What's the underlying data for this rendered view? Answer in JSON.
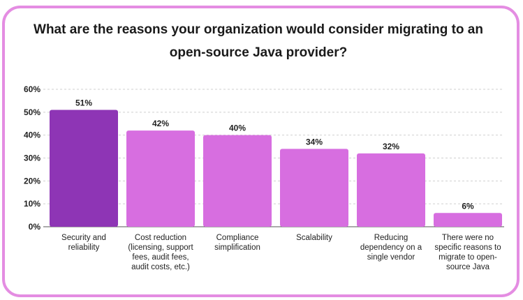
{
  "title": "What are the reasons your organization would consider migrating to an open-source Java provider?",
  "colors": {
    "border": "#e48de2",
    "highlight_bar": "#8e35b5",
    "bar": "#d76ee0",
    "grid": "#cfcfcf"
  },
  "chart_data": {
    "type": "bar",
    "title": "What are the reasons your organization would consider migrating to an open-source Java provider?",
    "categories": [
      [
        "Security and",
        "reliability"
      ],
      [
        "Cost reduction",
        "(licensing, support",
        "fees, audit fees,",
        "audit costs, etc.)"
      ],
      [
        "Compliance",
        "simplification"
      ],
      [
        "Scalability"
      ],
      [
        "Reducing",
        "dependency on a",
        "single vendor"
      ],
      [
        "There were no",
        "specific reasons to",
        "migrate to open-",
        "source Java"
      ]
    ],
    "values": [
      51,
      42,
      40,
      34,
      32,
      6
    ],
    "value_labels": [
      "51%",
      "42%",
      "40%",
      "34%",
      "32%",
      "6%"
    ],
    "highlight_index": 0,
    "ylim": [
      0,
      60
    ],
    "yticks": [
      0,
      10,
      20,
      30,
      40,
      50,
      60
    ],
    "ytick_labels": [
      "0%",
      "10%",
      "20%",
      "30%",
      "40%",
      "50%",
      "60%"
    ],
    "grid": true
  }
}
